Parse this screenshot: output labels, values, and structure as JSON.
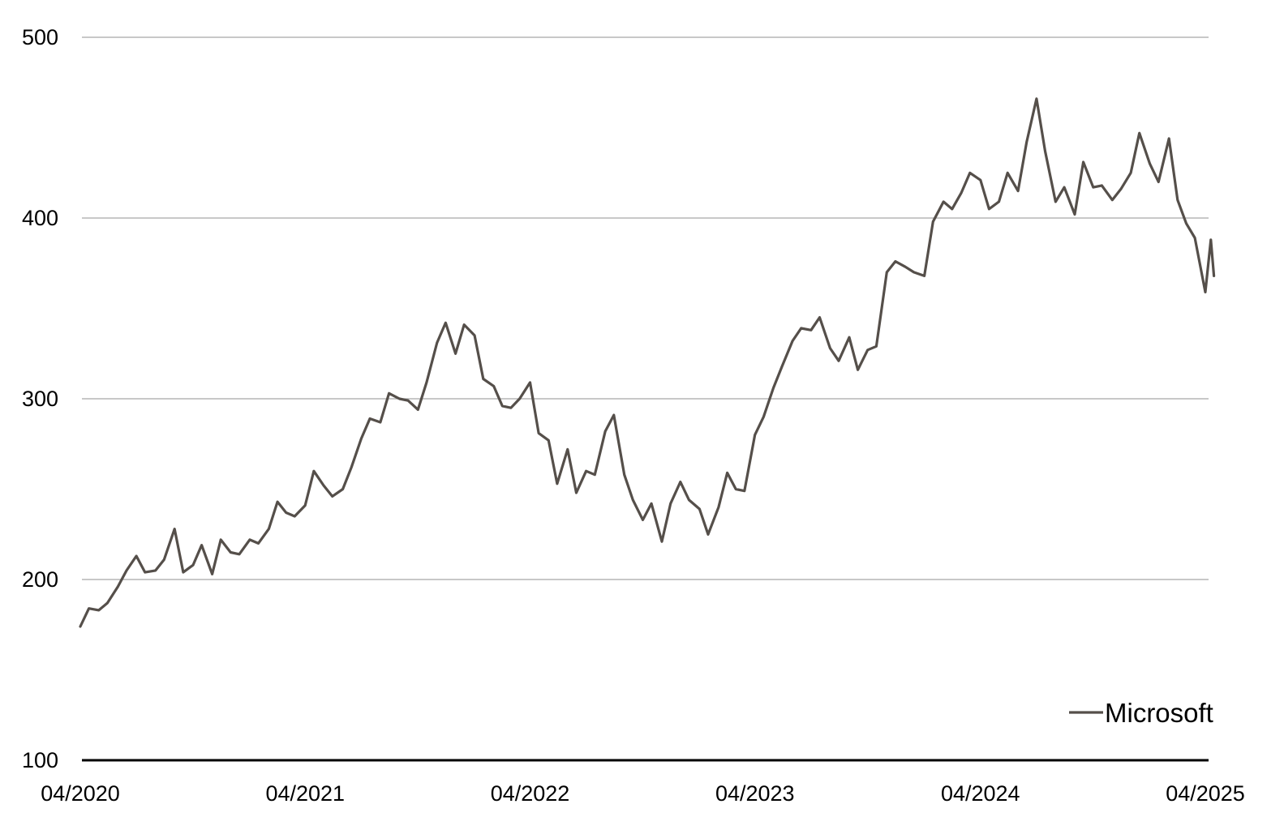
{
  "colors": {
    "series": "#554f4a",
    "gridline": "#a6a6a6",
    "axis": "#000000",
    "text": "#000000",
    "background": "#ffffff"
  },
  "chart_data": {
    "type": "line",
    "title": "",
    "xlabel": "",
    "ylabel": "",
    "ylim": [
      100,
      500
    ],
    "y_ticks": [
      100,
      200,
      300,
      400,
      500
    ],
    "y_tick_labels": [
      "100",
      "200",
      "300",
      "400",
      "500"
    ],
    "xlim": [
      "2020-04",
      "2025-04"
    ],
    "x_ticks": [
      "2020-04",
      "2021-04",
      "2022-04",
      "2023-04",
      "2024-04",
      "2025-04"
    ],
    "x_tick_labels": [
      "04/2020",
      "04/2021",
      "04/2022",
      "04/2023",
      "04/2024",
      "04/2025"
    ],
    "grid": "horizontal",
    "legend": "bottom-right",
    "series": [
      {
        "name": "Microsoft",
        "points": [
          [
            "2020-04-01",
            174
          ],
          [
            "2020-04-15",
            184
          ],
          [
            "2020-05-01",
            183
          ],
          [
            "2020-05-15",
            187
          ],
          [
            "2020-06-01",
            196
          ],
          [
            "2020-06-15",
            205
          ],
          [
            "2020-07-01",
            213
          ],
          [
            "2020-07-15",
            204
          ],
          [
            "2020-08-01",
            205
          ],
          [
            "2020-08-15",
            211
          ],
          [
            "2020-09-01",
            228
          ],
          [
            "2020-09-15",
            204
          ],
          [
            "2020-10-01",
            208
          ],
          [
            "2020-10-15",
            219
          ],
          [
            "2020-11-01",
            203
          ],
          [
            "2020-11-15",
            222
          ],
          [
            "2020-12-01",
            215
          ],
          [
            "2020-12-15",
            214
          ],
          [
            "2021-01-01",
            222
          ],
          [
            "2021-01-15",
            220
          ],
          [
            "2021-02-01",
            228
          ],
          [
            "2021-02-15",
            243
          ],
          [
            "2021-03-01",
            237
          ],
          [
            "2021-03-15",
            235
          ],
          [
            "2021-04-01",
            241
          ],
          [
            "2021-04-15",
            260
          ],
          [
            "2021-05-01",
            252
          ],
          [
            "2021-05-15",
            246
          ],
          [
            "2021-06-01",
            250
          ],
          [
            "2021-06-15",
            262
          ],
          [
            "2021-07-01",
            278
          ],
          [
            "2021-07-15",
            289
          ],
          [
            "2021-08-01",
            287
          ],
          [
            "2021-08-15",
            303
          ],
          [
            "2021-09-01",
            300
          ],
          [
            "2021-09-15",
            299
          ],
          [
            "2021-10-01",
            294
          ],
          [
            "2021-10-15",
            309
          ],
          [
            "2021-11-01",
            331
          ],
          [
            "2021-11-15",
            342
          ],
          [
            "2021-12-01",
            325
          ],
          [
            "2021-12-15",
            341
          ],
          [
            "2022-01-01",
            335
          ],
          [
            "2022-01-15",
            311
          ],
          [
            "2022-02-01",
            307
          ],
          [
            "2022-02-15",
            296
          ],
          [
            "2022-03-01",
            295
          ],
          [
            "2022-03-15",
            300
          ],
          [
            "2022-04-01",
            309
          ],
          [
            "2022-04-15",
            281
          ],
          [
            "2022-05-01",
            277
          ],
          [
            "2022-05-15",
            253
          ],
          [
            "2022-06-01",
            272
          ],
          [
            "2022-06-15",
            248
          ],
          [
            "2022-07-01",
            260
          ],
          [
            "2022-07-15",
            258
          ],
          [
            "2022-08-01",
            282
          ],
          [
            "2022-08-15",
            291
          ],
          [
            "2022-09-01",
            258
          ],
          [
            "2022-09-15",
            244
          ],
          [
            "2022-10-01",
            233
          ],
          [
            "2022-10-15",
            242
          ],
          [
            "2022-11-01",
            221
          ],
          [
            "2022-11-15",
            242
          ],
          [
            "2022-12-01",
            254
          ],
          [
            "2022-12-15",
            244
          ],
          [
            "2023-01-01",
            239
          ],
          [
            "2023-01-15",
            225
          ],
          [
            "2023-02-01",
            240
          ],
          [
            "2023-02-15",
            259
          ],
          [
            "2023-03-01",
            250
          ],
          [
            "2023-03-15",
            249
          ],
          [
            "2023-04-01",
            280
          ],
          [
            "2023-04-15",
            290
          ],
          [
            "2023-05-01",
            306
          ],
          [
            "2023-05-15",
            318
          ],
          [
            "2023-06-01",
            332
          ],
          [
            "2023-06-15",
            339
          ],
          [
            "2023-07-01",
            338
          ],
          [
            "2023-07-15",
            345
          ],
          [
            "2023-08-01",
            328
          ],
          [
            "2023-08-15",
            321
          ],
          [
            "2023-09-01",
            334
          ],
          [
            "2023-09-15",
            316
          ],
          [
            "2023-10-01",
            327
          ],
          [
            "2023-10-15",
            329
          ],
          [
            "2023-11-01",
            370
          ],
          [
            "2023-11-15",
            376
          ],
          [
            "2023-12-01",
            373
          ],
          [
            "2023-12-15",
            370
          ],
          [
            "2024-01-01",
            368
          ],
          [
            "2024-01-15",
            398
          ],
          [
            "2024-02-01",
            409
          ],
          [
            "2024-02-15",
            405
          ],
          [
            "2024-03-01",
            414
          ],
          [
            "2024-03-15",
            425
          ],
          [
            "2024-04-01",
            421
          ],
          [
            "2024-04-15",
            405
          ],
          [
            "2024-05-01",
            409
          ],
          [
            "2024-05-15",
            425
          ],
          [
            "2024-06-01",
            415
          ],
          [
            "2024-06-15",
            442
          ],
          [
            "2024-07-01",
            466
          ],
          [
            "2024-07-15",
            437
          ],
          [
            "2024-08-01",
            409
          ],
          [
            "2024-08-15",
            417
          ],
          [
            "2024-09-01",
            402
          ],
          [
            "2024-09-15",
            431
          ],
          [
            "2024-10-01",
            417
          ],
          [
            "2024-10-15",
            418
          ],
          [
            "2024-11-01",
            410
          ],
          [
            "2024-11-15",
            416
          ],
          [
            "2024-12-01",
            425
          ],
          [
            "2024-12-15",
            447
          ],
          [
            "2025-01-01",
            430
          ],
          [
            "2025-01-15",
            420
          ],
          [
            "2025-02-01",
            444
          ],
          [
            "2025-02-15",
            410
          ],
          [
            "2025-03-01",
            397
          ],
          [
            "2025-03-15",
            389
          ],
          [
            "2025-04-01",
            359
          ],
          [
            "2025-04-10",
            388
          ],
          [
            "2025-04-15",
            368
          ]
        ]
      }
    ]
  }
}
